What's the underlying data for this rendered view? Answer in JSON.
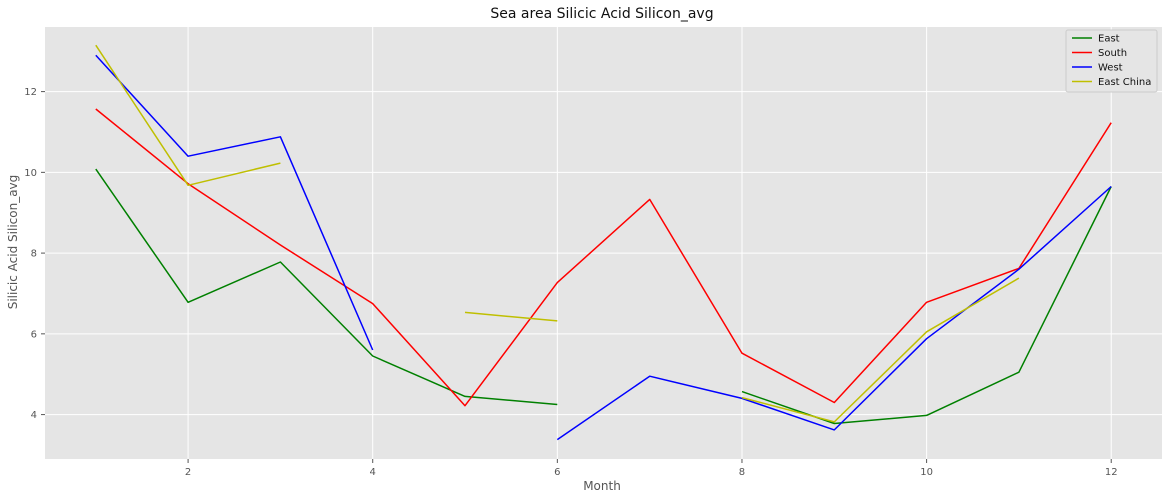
{
  "chart_data": {
    "type": "line",
    "title": "Sea area Silicic Acid Silicon_avg",
    "xlabel": "Month",
    "ylabel": "Silicic Acid Silicon_avg",
    "xlim": [
      0.45,
      12.55
    ],
    "ylim": [
      2.9,
      13.6
    ],
    "xticks": [
      2,
      4,
      6,
      8,
      10,
      12
    ],
    "yticks": [
      4,
      6,
      8,
      10,
      12
    ],
    "grid": true,
    "legend_position": "top-right",
    "series": [
      {
        "name": "East",
        "color": "#008000",
        "values": [
          10.08,
          6.78,
          7.78,
          5.45,
          4.45,
          4.25,
          null,
          4.57,
          3.78,
          3.98,
          5.05,
          9.65
        ]
      },
      {
        "name": "South",
        "color": "#ff0000",
        "values": [
          11.57,
          9.72,
          8.2,
          6.75,
          4.22,
          7.27,
          9.33,
          5.52,
          4.3,
          6.78,
          7.62,
          11.23
        ]
      },
      {
        "name": "West",
        "color": "#0000ff",
        "values": [
          12.9,
          10.4,
          10.88,
          5.6,
          null,
          3.38,
          4.95,
          4.4,
          3.62,
          5.88,
          7.6,
          9.65
        ]
      },
      {
        "name": "East China",
        "color": "#bfbf00",
        "values": [
          13.15,
          9.68,
          10.23,
          null,
          6.53,
          6.32,
          null,
          4.42,
          3.82,
          6.05,
          7.38,
          null
        ]
      }
    ]
  }
}
